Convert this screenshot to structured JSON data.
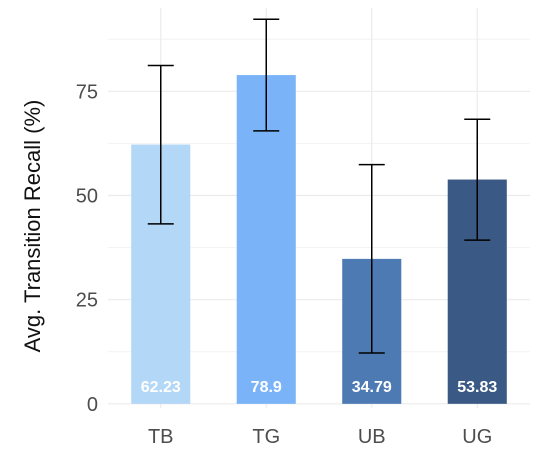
{
  "chart_data": {
    "type": "bar",
    "title": "",
    "xlabel": "",
    "ylabel": "Avg. Transition Recall (%)",
    "categories": [
      "TB",
      "TG",
      "UB",
      "UG"
    ],
    "values": [
      62.23,
      78.9,
      34.79,
      53.83
    ],
    "value_labels": [
      "62.23",
      "78.9",
      "34.79",
      "53.83"
    ],
    "error_low": [
      43.2,
      65.5,
      12.2,
      39.3
    ],
    "error_high": [
      81.2,
      92.3,
      57.4,
      68.3
    ],
    "colors": [
      "#b3d7f7",
      "#7ab3f7",
      "#4e7ab4",
      "#3a5a85"
    ],
    "yticks": [
      0,
      25,
      50,
      75
    ],
    "ylim": [
      -1,
      95
    ],
    "grid": true,
    "legend": "none"
  }
}
